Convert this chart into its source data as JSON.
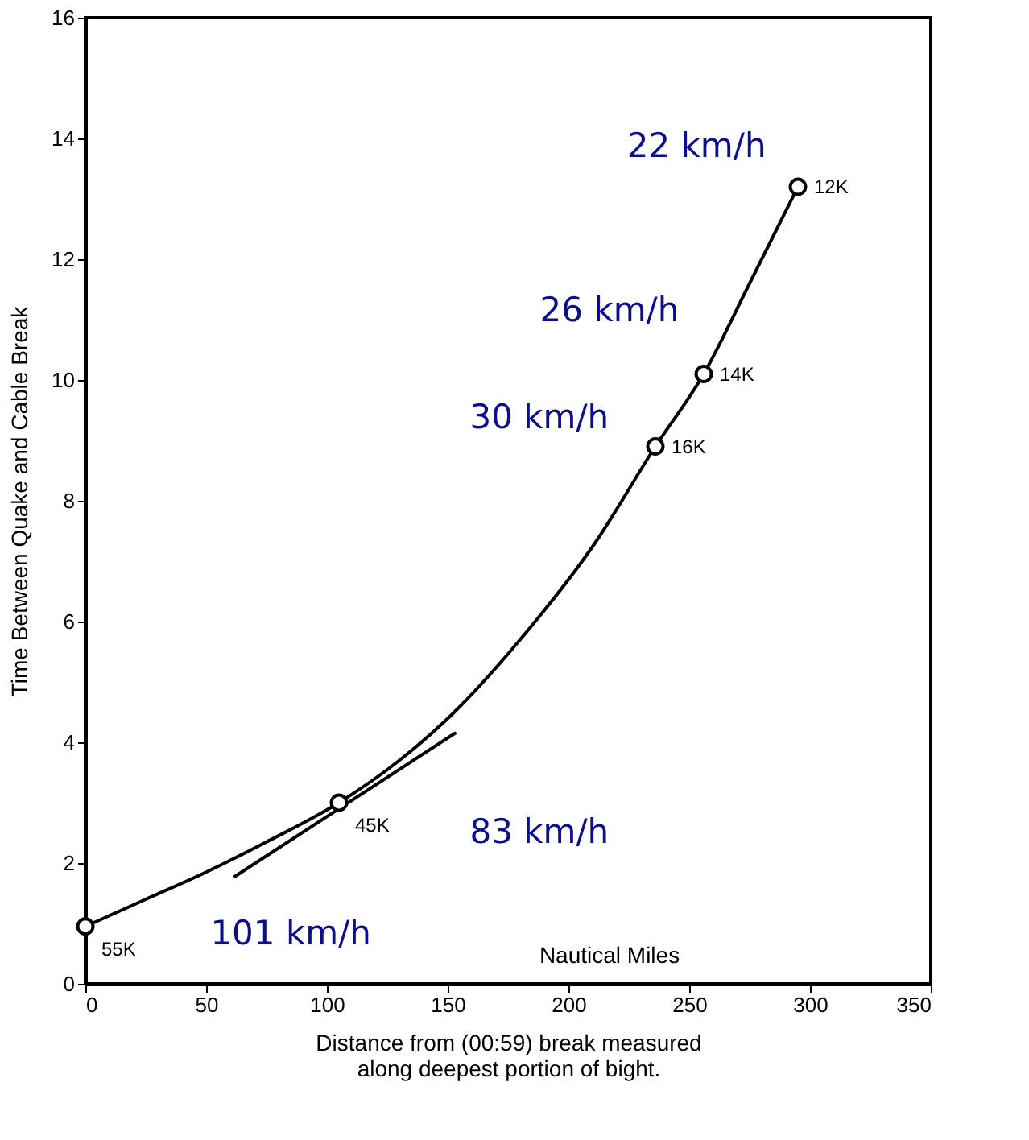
{
  "chart_data": {
    "type": "line",
    "xlabel": "Distance from (00:59) break measured\nalong deepest portion of bight.",
    "ylabel": "Time Between Quake and Cable Break",
    "xlim": [
      0,
      350
    ],
    "xticks": [
      0,
      50,
      100,
      150,
      200,
      250,
      300,
      350
    ],
    "ylim": [
      0,
      16
    ],
    "yticks": [
      0,
      2,
      4,
      6,
      8,
      10,
      12,
      14,
      16
    ],
    "grid": false,
    "series": [
      {
        "color": "#000000",
        "line_style": "solid",
        "marker": "none",
        "x": [
          0,
          25,
          50,
          75,
          105,
          130,
          152,
          180,
          211,
          236,
          256,
          275,
          295
        ],
        "values": [
          0.95,
          1.4,
          1.85,
          2.35,
          3.0,
          3.7,
          4.47,
          5.7,
          7.3,
          8.9,
          10.1,
          11.6,
          13.2
        ]
      },
      {
        "type": "line",
        "color": "#000000",
        "line_style": "solid",
        "marker": "none",
        "x": [
          62,
          153
        ],
        "values": [
          1.78,
          4.15
        ]
      },
      {
        "type": "scatter",
        "color": "#000000",
        "marker": "circle",
        "x": [
          0,
          105,
          236,
          256,
          295
        ],
        "values": [
          0.95,
          3.0,
          8.9,
          10.1,
          13.2
        ]
      }
    ],
    "annotations": [
      {
        "text": "55K",
        "x": 0,
        "y": 0.95
      },
      {
        "text": "45K",
        "x": 105,
        "y": 3.0
      },
      {
        "text": "16K",
        "x": 236,
        "y": 8.9
      },
      {
        "text": "14K",
        "x": 256,
        "y": 10.1
      },
      {
        "text": "12K",
        "x": 295,
        "y": 13.2
      },
      "22 km/h",
      "26 km/h",
      "30 km/h",
      "83 km/h",
      "101 km/h",
      "Nautical Miles"
    ]
  }
}
